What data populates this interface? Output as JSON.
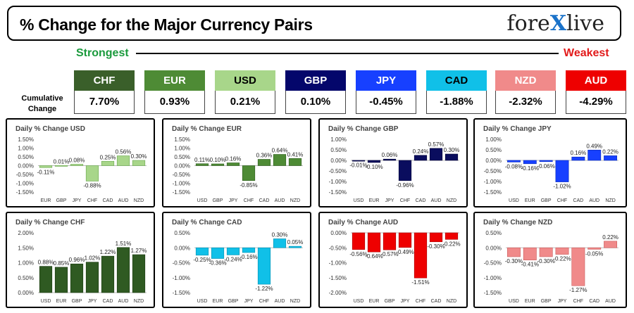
{
  "header": {
    "title": "% Change for the Major Currency Pairs",
    "logo": "forexlive",
    "logo_parts": [
      "fore",
      "X",
      "live"
    ]
  },
  "scale": {
    "strongest_label": "Strongest",
    "weakest_label": "Weakest"
  },
  "cumulative": {
    "label_line1": "Cumulative",
    "label_line2": "Change",
    "items": [
      {
        "code": "CHF",
        "value": "7.70%",
        "bg": "#3a5f2a",
        "fg": "#ffffff"
      },
      {
        "code": "EUR",
        "value": "0.93%",
        "bg": "#4e8b35",
        "fg": "#ffffff"
      },
      {
        "code": "USD",
        "value": "0.21%",
        "bg": "#a8d68a",
        "fg": "#000000"
      },
      {
        "code": "GBP",
        "value": "0.10%",
        "bg": "#04066b",
        "fg": "#ffffff"
      },
      {
        "code": "JPY",
        "value": "-0.45%",
        "bg": "#1740ff",
        "fg": "#ffffff"
      },
      {
        "code": "CAD",
        "value": "-1.88%",
        "bg": "#10c0e8",
        "fg": "#000000"
      },
      {
        "code": "NZD",
        "value": "-2.32%",
        "bg": "#f08a8a",
        "fg": "#ffffff"
      },
      {
        "code": "AUD",
        "value": "-4.29%",
        "bg": "#ee0000",
        "fg": "#ffffff"
      }
    ]
  },
  "chart_data": [
    {
      "type": "bar",
      "title": "Daily % Change USD",
      "color": "#a8d68a",
      "color_dark": "#6aa84f",
      "categories": [
        "EUR",
        "GBP",
        "JPY",
        "CHF",
        "CAD",
        "AUD",
        "NZD"
      ],
      "values": [
        -0.11,
        0.01,
        0.08,
        -0.88,
        0.25,
        0.56,
        0.3
      ],
      "labels": [
        "-0.11%",
        "0.01%",
        "0.08%",
        "-0.88%",
        "0.25%",
        "0.56%",
        "0.30%"
      ],
      "yticks": [
        "1.50%",
        "1.00%",
        "0.50%",
        "0.00%",
        "-0.50%",
        "-1.00%",
        "-1.50%"
      ],
      "ylim": [
        -1.5,
        1.5
      ]
    },
    {
      "type": "bar",
      "title": "Daily % Change EUR",
      "color": "#4e8b35",
      "color_dark": "#2f5e1f",
      "categories": [
        "USD",
        "GBP",
        "JPY",
        "CHF",
        "CAD",
        "AUD",
        "NZD"
      ],
      "values": [
        0.11,
        0.1,
        0.16,
        -0.85,
        0.36,
        0.64,
        0.41
      ],
      "labels": [
        "0.11%",
        "0.10%",
        "0.16%",
        "-0.85%",
        "0.36%",
        "0.64%",
        "0.41%"
      ],
      "yticks": [
        "1.50%",
        "1.00%",
        "0.50%",
        "0.00%",
        "-0.50%",
        "-1.00%",
        "-1.50%"
      ],
      "ylim": [
        -1.5,
        1.5
      ]
    },
    {
      "type": "bar",
      "title": "Daily % Change GBP",
      "color": "#0a0d5e",
      "color_dark": "#04063a",
      "categories": [
        "USD",
        "EUR",
        "JPY",
        "CHF",
        "CAD",
        "AUD",
        "NZD"
      ],
      "values": [
        -0.01,
        -0.1,
        0.06,
        -0.96,
        0.24,
        0.57,
        0.3
      ],
      "labels": [
        "-0.01%",
        "-0.10%",
        "0.06%",
        "-0.96%",
        "0.24%",
        "0.57%",
        "0.30%"
      ],
      "yticks": [
        "1.00%",
        "0.50%",
        "0.00%",
        "-0.50%",
        "-1.00%",
        "-1.50%"
      ],
      "ylim": [
        -1.5,
        1.0
      ]
    },
    {
      "type": "bar",
      "title": "Daily % Change JPY",
      "color": "#1740ff",
      "color_dark": "#0a2bb8",
      "categories": [
        "USD",
        "EUR",
        "GBP",
        "CHF",
        "CAD",
        "AUD",
        "NZD"
      ],
      "values": [
        -0.08,
        -0.16,
        -0.06,
        -1.02,
        0.16,
        0.49,
        0.22
      ],
      "labels": [
        "-0.08%",
        "-0.16%",
        "-0.06%",
        "-1.02%",
        "0.16%",
        "0.49%",
        "0.22%"
      ],
      "yticks": [
        "1.00%",
        "0.50%",
        "0.00%",
        "-0.50%",
        "-1.00%",
        "-1.50%"
      ],
      "ylim": [
        -1.5,
        1.0
      ]
    },
    {
      "type": "bar",
      "title": "Daily % Change CHF",
      "color": "#2f5a22",
      "color_dark": "#1b3a12",
      "categories": [
        "USD",
        "EUR",
        "GBP",
        "JPY",
        "CAD",
        "AUD",
        "NZD"
      ],
      "values": [
        0.88,
        0.85,
        0.96,
        1.02,
        1.22,
        1.51,
        1.27
      ],
      "labels": [
        "0.88%",
        "0.85%",
        "0.96%",
        "1.02%",
        "1.22%",
        "1.51%",
        "1.27%"
      ],
      "yticks": [
        "2.00%",
        "1.50%",
        "1.00%",
        "0.50%",
        "0.00%"
      ],
      "ylim": [
        0,
        2.0
      ]
    },
    {
      "type": "bar",
      "title": "Daily % Change CAD",
      "color": "#10c0e8",
      "color_dark": "#0a8fb0",
      "categories": [
        "USD",
        "EUR",
        "GBP",
        "JPY",
        "CHF",
        "AUD",
        "NZD"
      ],
      "values": [
        -0.25,
        -0.36,
        -0.24,
        -0.16,
        -1.22,
        0.3,
        0.05
      ],
      "labels": [
        "-0.25%",
        "-0.36%",
        "-0.24%",
        "-0.16%",
        "-1.22%",
        "0.30%",
        "0.05%"
      ],
      "yticks": [
        "0.50%",
        "0.00%",
        "-0.50%",
        "-1.00%",
        "-1.50%"
      ],
      "ylim": [
        -1.5,
        0.5
      ]
    },
    {
      "type": "bar",
      "title": "Daily % Change AUD",
      "color": "#ee0000",
      "color_dark": "#a80000",
      "categories": [
        "USD",
        "EUR",
        "GBP",
        "JPY",
        "CHF",
        "CAD",
        "NZD"
      ],
      "values": [
        -0.56,
        -0.64,
        -0.57,
        -0.49,
        -1.51,
        -0.3,
        -0.22
      ],
      "labels": [
        "-0.56%",
        "-0.64%",
        "-0.57%",
        "-0.49%",
        "-1.51%",
        "-0.30%",
        "-0.22%"
      ],
      "yticks": [
        "0.00%",
        "-0.50%",
        "-1.00%",
        "-1.50%",
        "-2.00%"
      ],
      "ylim": [
        -2.0,
        0.0
      ]
    },
    {
      "type": "bar",
      "title": "Daily % Change NZD",
      "color": "#f08a8a",
      "color_dark": "#c95a5a",
      "categories": [
        "USD",
        "EUR",
        "GBP",
        "JPY",
        "CHF",
        "CAD",
        "AUD"
      ],
      "values": [
        -0.3,
        -0.41,
        -0.3,
        -0.22,
        -1.27,
        -0.05,
        0.22
      ],
      "labels": [
        "-0.30%",
        "-0.41%",
        "-0.30%",
        "-0.22%",
        "-1.27%",
        "-0.05%",
        "0.22%"
      ],
      "yticks": [
        "0.50%",
        "0.00%",
        "-0.50%",
        "-1.00%",
        "-1.50%"
      ],
      "ylim": [
        -1.5,
        0.5
      ]
    }
  ]
}
